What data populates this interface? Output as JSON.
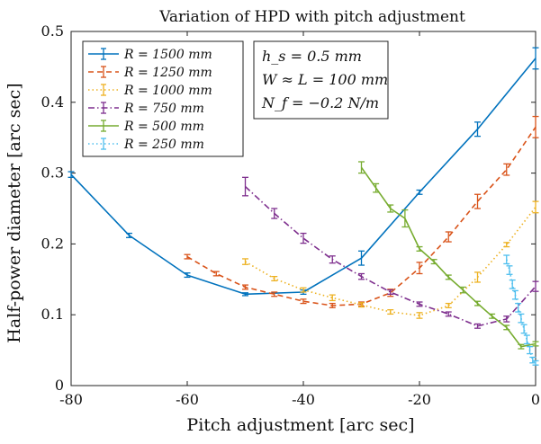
{
  "chart_data": {
    "type": "line",
    "title": "Variation of HPD with pitch adjustment",
    "xlabel": "Pitch adjustment [arc sec]",
    "ylabel": "Half-power diameter [arc sec]",
    "xlim": [
      -80,
      0
    ],
    "ylim": [
      0,
      0.5
    ],
    "xticks": [
      "-80",
      "-60",
      "-40",
      "-20",
      "0"
    ],
    "xtick_values": [
      -80,
      -60,
      -40,
      -20,
      0
    ],
    "yticks": [
      "0",
      "0.1",
      "0.2",
      "0.3",
      "0.4",
      "0.5"
    ],
    "ytick_values": [
      0,
      0.1,
      0.2,
      0.3,
      0.4,
      0.5
    ],
    "grid": false,
    "legend_position": "top-left",
    "annotation": [
      "h_s = 0.5 mm",
      "W ≈ L = 100 mm",
      "N_f = −0.2 N/m"
    ],
    "series": [
      {
        "name": "R = 1500 mm",
        "color": "#0072BD",
        "style": "solid",
        "points": [
          [
            -80,
            0.298,
            0.004
          ],
          [
            -70,
            0.212,
            0.003
          ],
          [
            -60,
            0.156,
            0.003
          ],
          [
            -50,
            0.129,
            0.002
          ],
          [
            -40,
            0.132,
            0.003
          ],
          [
            -30,
            0.18,
            0.01
          ],
          [
            -20,
            0.273,
            0.003
          ],
          [
            -10,
            0.362,
            0.01
          ],
          [
            0,
            0.462,
            0.015
          ]
        ]
      },
      {
        "name": "R = 1250 mm",
        "color": "#D95319",
        "style": "dashed",
        "points": [
          [
            -60,
            0.182,
            0.003
          ],
          [
            -55,
            0.158,
            0.003
          ],
          [
            -50,
            0.139,
            0.003
          ],
          [
            -45,
            0.129,
            0.003
          ],
          [
            -40,
            0.119,
            0.003
          ],
          [
            -35,
            0.113,
            0.003
          ],
          [
            -30,
            0.115,
            0.003
          ],
          [
            -25,
            0.131,
            0.005
          ],
          [
            -20,
            0.166,
            0.008
          ],
          [
            -15,
            0.21,
            0.007
          ],
          [
            -10,
            0.26,
            0.01
          ],
          [
            -5,
            0.305,
            0.008
          ],
          [
            0,
            0.365,
            0.015
          ]
        ]
      },
      {
        "name": "R = 1000 mm",
        "color": "#EDB120",
        "style": "dotted",
        "points": [
          [
            -50,
            0.175,
            0.004
          ],
          [
            -45,
            0.151,
            0.003
          ],
          [
            -40,
            0.135,
            0.003
          ],
          [
            -35,
            0.124,
            0.004
          ],
          [
            -30,
            0.114,
            0.003
          ],
          [
            -25,
            0.104,
            0.003
          ],
          [
            -20,
            0.099,
            0.004
          ],
          [
            -15,
            0.113,
            0.003
          ],
          [
            -10,
            0.153,
            0.007
          ],
          [
            -5,
            0.199,
            0.003
          ],
          [
            0,
            0.252,
            0.008
          ]
        ]
      },
      {
        "name": "R = 750 mm",
        "color": "#7E2F8E",
        "style": "dashdot",
        "points": [
          [
            -50,
            0.281,
            0.013
          ],
          [
            -45,
            0.243,
            0.007
          ],
          [
            -40,
            0.208,
            0.007
          ],
          [
            -35,
            0.178,
            0.005
          ],
          [
            -30,
            0.154,
            0.004
          ],
          [
            -25,
            0.132,
            0.003
          ],
          [
            -20,
            0.115,
            0.003
          ],
          [
            -15,
            0.101,
            0.003
          ],
          [
            -10,
            0.084,
            0.003
          ],
          [
            -5,
            0.094,
            0.004
          ],
          [
            0,
            0.14,
            0.007
          ]
        ]
      },
      {
        "name": "R = 500 mm",
        "color": "#77AC30",
        "style": "solid",
        "points": [
          [
            -30,
            0.308,
            0.008
          ],
          [
            -27.5,
            0.279,
            0.006
          ],
          [
            -25,
            0.25,
            0.005
          ],
          [
            -22.5,
            0.236,
            0.012
          ],
          [
            -20,
            0.193,
            0.003
          ],
          [
            -17.5,
            0.175,
            0.003
          ],
          [
            -15,
            0.153,
            0.003
          ],
          [
            -12.5,
            0.135,
            0.004
          ],
          [
            -10,
            0.116,
            0.003
          ],
          [
            -7.5,
            0.098,
            0.003
          ],
          [
            -5,
            0.082,
            0.003
          ],
          [
            -2.5,
            0.055,
            0.003
          ],
          [
            0,
            0.059,
            0.003
          ]
        ]
      },
      {
        "name": "R = 250 mm",
        "color": "#4DBEEE",
        "style": "dotted",
        "points": [
          [
            -5,
            0.178,
            0.006
          ],
          [
            -4.5,
            0.163,
            0.006
          ],
          [
            -4,
            0.143,
            0.006
          ],
          [
            -3.5,
            0.128,
            0.006
          ],
          [
            -3,
            0.11,
            0.006
          ],
          [
            -2.5,
            0.095,
            0.006
          ],
          [
            -2,
            0.08,
            0.006
          ],
          [
            -1.5,
            0.065,
            0.006
          ],
          [
            -1,
            0.05,
            0.005
          ],
          [
            -0.5,
            0.036,
            0.004
          ],
          [
            0,
            0.032,
            0.003
          ]
        ]
      }
    ]
  }
}
